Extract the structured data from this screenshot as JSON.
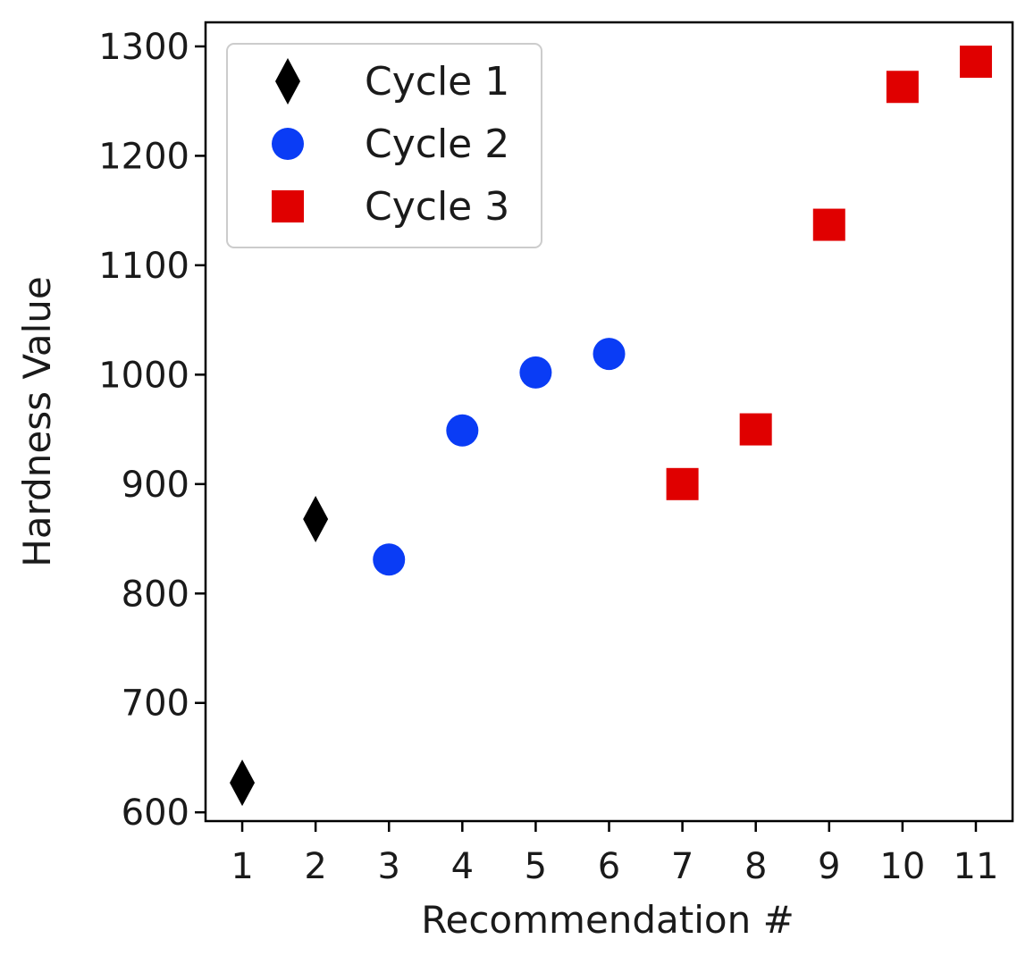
{
  "chart_data": {
    "type": "scatter",
    "title": "",
    "xlabel": "Recommendation #",
    "ylabel": "Hardness Value",
    "xlim": [
      0.5,
      11.5
    ],
    "ylim": [
      592,
      1322
    ],
    "xticks": [
      "1",
      "2",
      "3",
      "4",
      "5",
      "6",
      "7",
      "8",
      "9",
      "10",
      "11"
    ],
    "yticks": [
      "600",
      "700",
      "800",
      "900",
      "1000",
      "1100",
      "1200",
      "1300"
    ],
    "grid": false,
    "legend_position": "top-left",
    "series": [
      {
        "name": "Cycle 1",
        "marker": "diamond",
        "color": "#000000",
        "points": [
          {
            "x": 1,
            "y": 627
          },
          {
            "x": 2,
            "y": 868
          }
        ]
      },
      {
        "name": "Cycle 2",
        "marker": "circle",
        "color": "#0a3cf5",
        "points": [
          {
            "x": 3,
            "y": 831
          },
          {
            "x": 4,
            "y": 949
          },
          {
            "x": 5,
            "y": 1002
          },
          {
            "x": 6,
            "y": 1019
          }
        ]
      },
      {
        "name": "Cycle 3",
        "marker": "square",
        "color": "#e00000",
        "points": [
          {
            "x": 7,
            "y": 900
          },
          {
            "x": 8,
            "y": 950
          },
          {
            "x": 9,
            "y": 1137
          },
          {
            "x": 10,
            "y": 1263
          },
          {
            "x": 11,
            "y": 1286
          }
        ]
      }
    ]
  }
}
